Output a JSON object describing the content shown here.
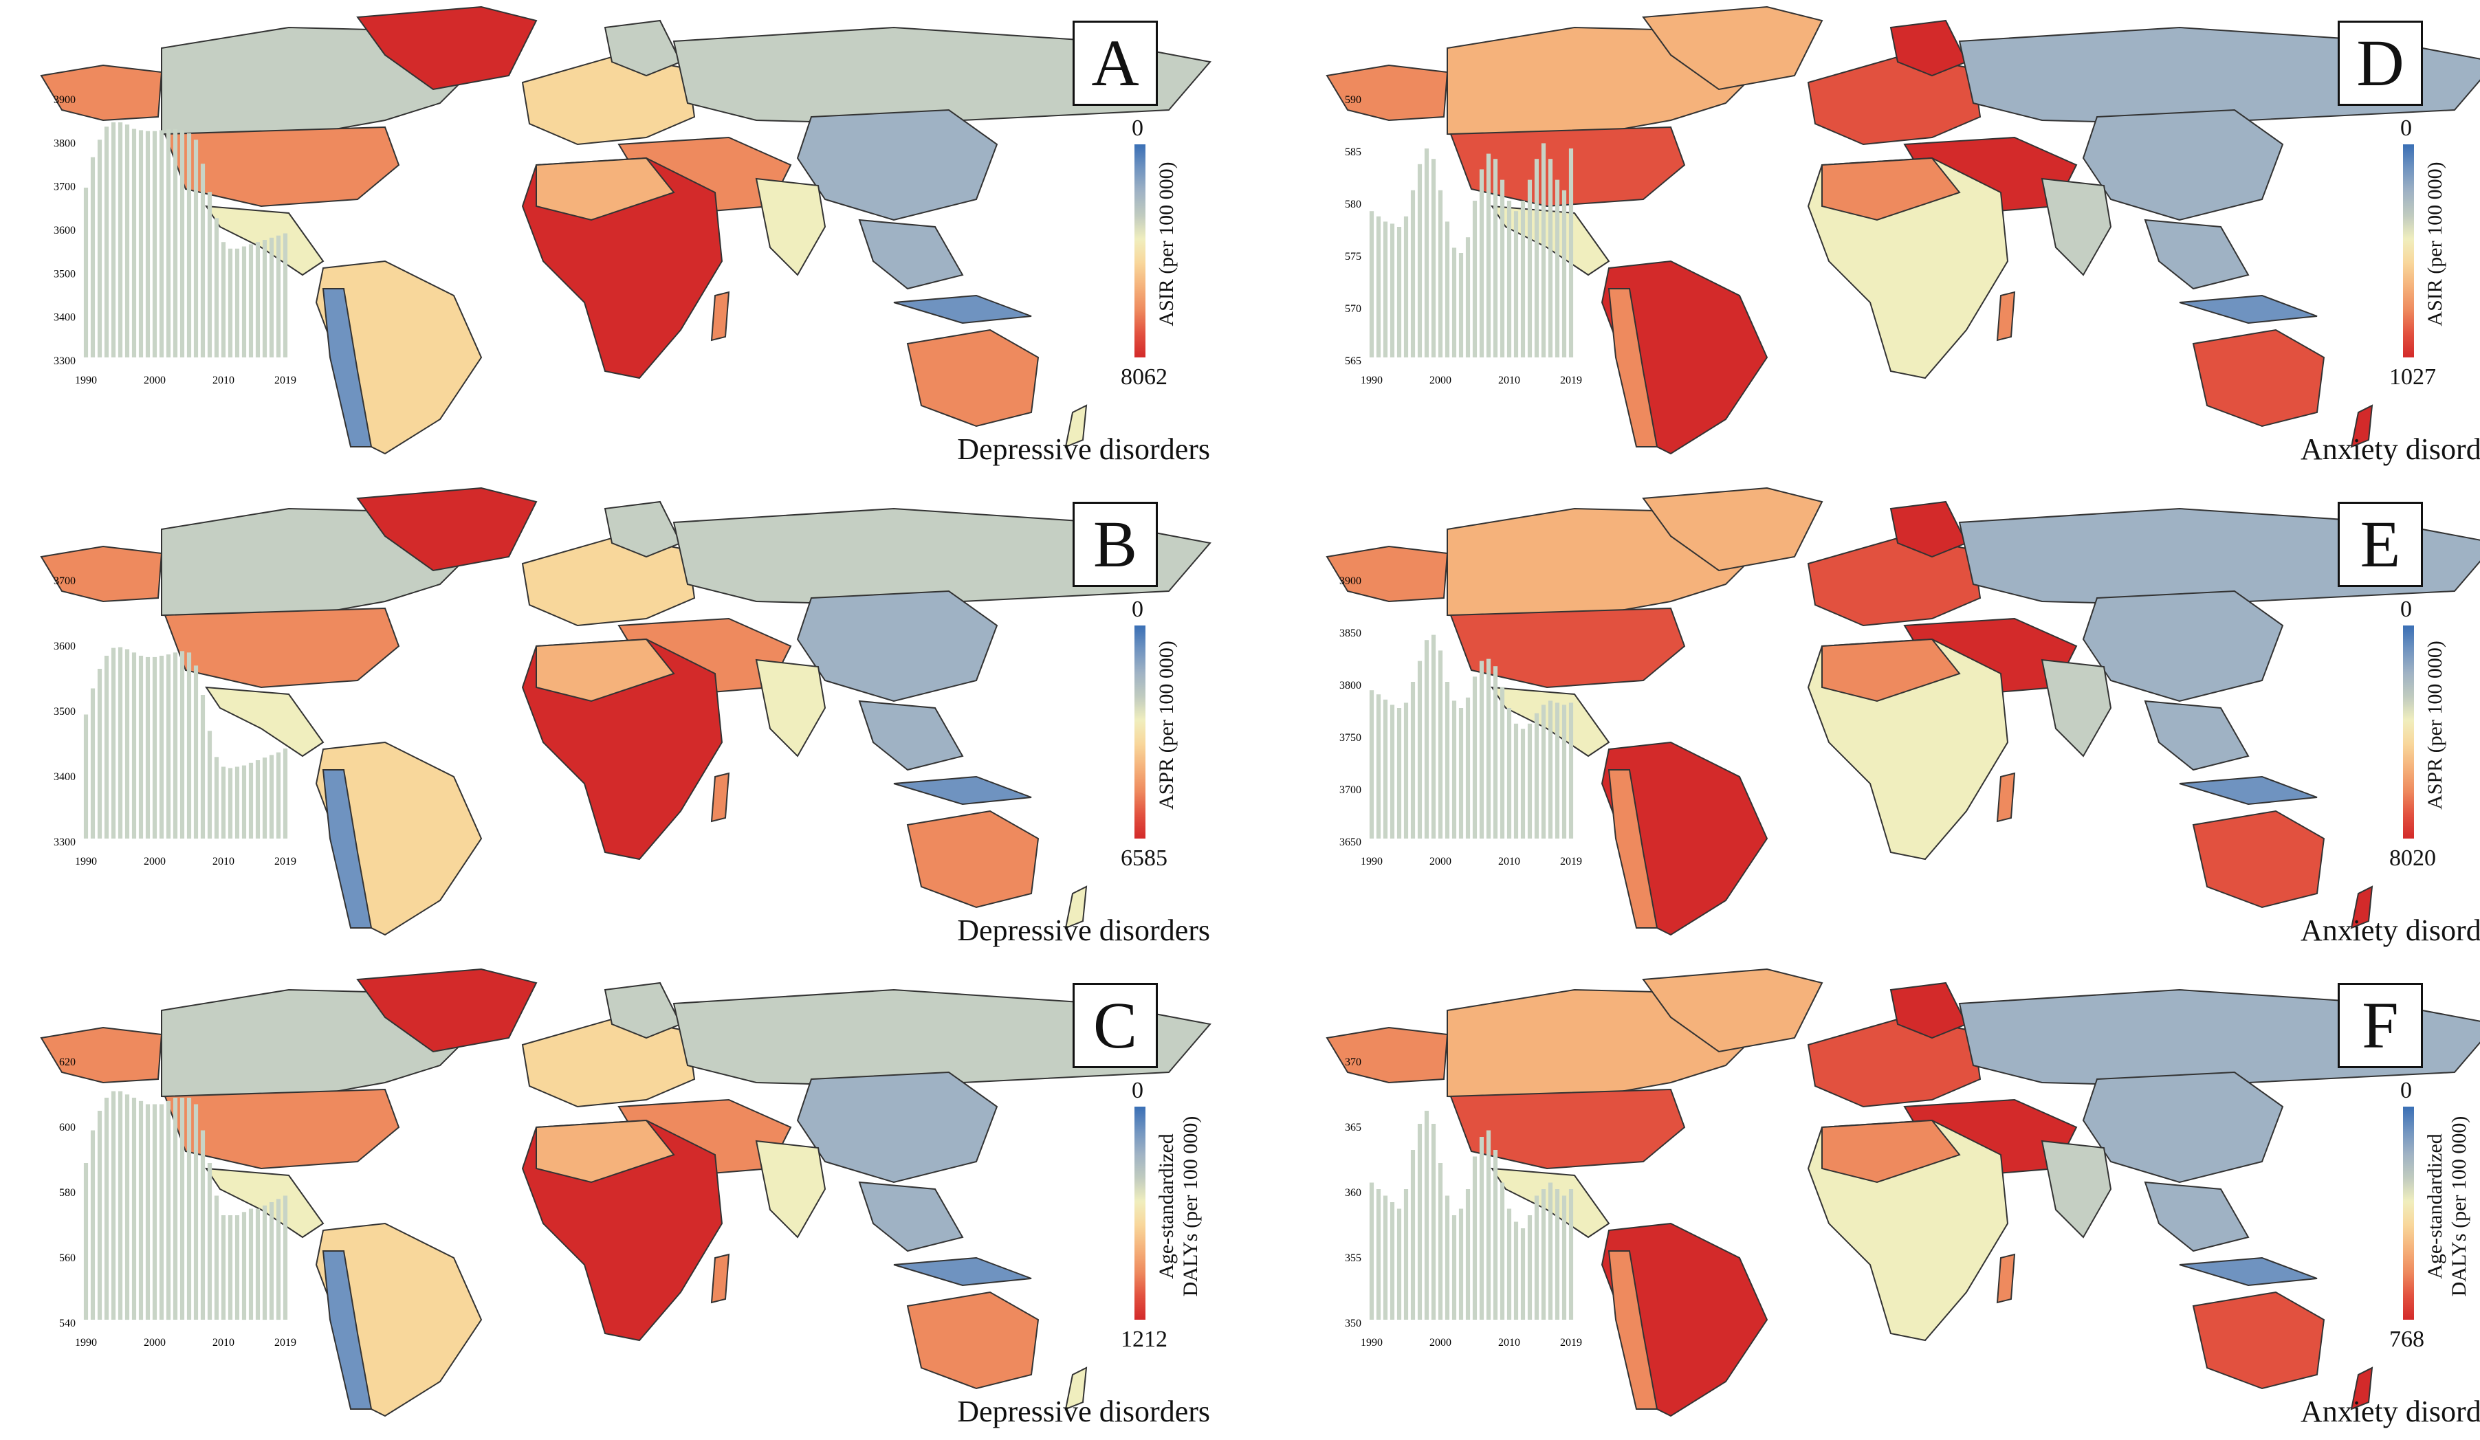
{
  "colors": {
    "scale": [
      "#3a6fb5",
      "#6f93c0",
      "#9fb2c4",
      "#c0cbbf",
      "#f0eebe",
      "#f8d79b",
      "#f5b27b",
      "#ee8a5e",
      "#e2513f",
      "#d32a2a"
    ],
    "bar": "#c8d4c6",
    "land_low": "#9fb2c4",
    "land_mid": "#c5cfc3"
  },
  "panels": [
    {
      "id": "A",
      "letter": "A",
      "disorder": "Depressive disorders",
      "metric": "ASIR (per 100 000)",
      "scale_min": "0",
      "scale_max": "8062",
      "chart_data": {
        "type": "bar",
        "title": "",
        "xlabel": "",
        "ylabel": "",
        "x": [
          1990,
          1991,
          1992,
          1993,
          1994,
          1995,
          1996,
          1997,
          1998,
          1999,
          2000,
          2001,
          2002,
          2003,
          2004,
          2005,
          2006,
          2007,
          2008,
          2009,
          2010,
          2011,
          2012,
          2013,
          2014,
          2015,
          2016,
          2017,
          2018,
          2019
        ],
        "values": [
          3690,
          3760,
          3800,
          3830,
          3840,
          3840,
          3835,
          3825,
          3822,
          3820,
          3820,
          3822,
          3825,
          3825,
          3822,
          3815,
          3800,
          3745,
          3680,
          3620,
          3565,
          3550,
          3550,
          3555,
          3560,
          3565,
          3570,
          3575,
          3580,
          3585
        ],
        "yticks": [
          3300,
          3400,
          3500,
          3600,
          3700,
          3800,
          3900
        ],
        "ylim": [
          3300,
          3900
        ],
        "xticks": [
          "1990",
          "2000",
          "2010",
          "2019"
        ]
      }
    },
    {
      "id": "B",
      "letter": "B",
      "disorder": "Depressive disorders",
      "metric": "ASPR (per 100 000)",
      "scale_min": "0",
      "scale_max": "6585",
      "chart_data": {
        "type": "bar",
        "title": "",
        "xlabel": "",
        "ylabel": "",
        "x": [
          1990,
          1991,
          1992,
          1993,
          1994,
          1995,
          1996,
          1997,
          1998,
          1999,
          2000,
          2001,
          2002,
          2003,
          2004,
          2005,
          2006,
          2007,
          2008,
          2009,
          2010,
          2011,
          2012,
          2013,
          2014,
          2015,
          2016,
          2017,
          2018,
          2019
        ],
        "values": [
          3490,
          3530,
          3560,
          3580,
          3592,
          3593,
          3590,
          3585,
          3580,
          3578,
          3578,
          3580,
          3582,
          3585,
          3587,
          3585,
          3565,
          3520,
          3465,
          3425,
          3410,
          3408,
          3410,
          3412,
          3416,
          3420,
          3424,
          3428,
          3432,
          3438
        ],
        "yticks": [
          3300,
          3400,
          3500,
          3600,
          3700
        ],
        "ylim": [
          3300,
          3700
        ],
        "xticks": [
          "1990",
          "2000",
          "2010",
          "2019"
        ]
      }
    },
    {
      "id": "C",
      "letter": "C",
      "disorder": "Depressive disorders",
      "metric": "Age-standardized DALYs (per 100 000)",
      "scale_min": "0",
      "scale_max": "1212",
      "chart_data": {
        "type": "bar",
        "title": "",
        "xlabel": "",
        "ylabel": "",
        "x": [
          1990,
          1991,
          1992,
          1993,
          1994,
          1995,
          1996,
          1997,
          1998,
          1999,
          2000,
          2001,
          2002,
          2003,
          2004,
          2005,
          2006,
          2007,
          2008,
          2009,
          2010,
          2011,
          2012,
          2013,
          2014,
          2015,
          2016,
          2017,
          2018,
          2019
        ],
        "values": [
          588,
          598,
          604,
          608,
          610,
          610,
          609,
          608,
          607,
          606,
          606,
          606,
          607,
          608,
          608,
          608,
          606,
          598,
          588,
          578,
          572,
          572,
          572,
          573,
          574,
          574,
          575,
          576,
          577,
          578
        ],
        "yticks": [
          540,
          560,
          580,
          600,
          620
        ],
        "ylim": [
          540,
          620
        ],
        "xticks": [
          "1990",
          "2000",
          "2010",
          "2019"
        ]
      }
    },
    {
      "id": "D",
      "letter": "D",
      "disorder": "Anxiety disorders",
      "metric": "ASIR (per 100 000)",
      "scale_min": "0",
      "scale_max": "1027",
      "chart_data": {
        "type": "bar",
        "title": "",
        "xlabel": "",
        "ylabel": "",
        "x": [
          1990,
          1991,
          1992,
          1993,
          1994,
          1995,
          1996,
          1997,
          1998,
          1999,
          2000,
          2001,
          2002,
          2003,
          2004,
          2005,
          2006,
          2007,
          2008,
          2009,
          2010,
          2011,
          2012,
          2013,
          2014,
          2015,
          2016,
          2017,
          2018,
          2019
        ],
        "values": [
          579,
          578.5,
          578,
          577.8,
          577.5,
          578.5,
          581,
          583.5,
          585,
          584,
          581,
          578,
          575.5,
          575,
          576.5,
          580,
          583,
          584.5,
          584,
          582,
          580,
          579,
          580,
          582,
          584,
          585.5,
          584,
          582,
          581,
          585
        ],
        "yticks": [
          565,
          570,
          575,
          580,
          585,
          590
        ],
        "ylim": [
          565,
          590
        ],
        "xticks": [
          "1990",
          "2000",
          "2010",
          "2019"
        ]
      }
    },
    {
      "id": "E",
      "letter": "E",
      "disorder": "Anxiety disorders",
      "metric": "ASPR (per 100 000)",
      "scale_min": "0",
      "scale_max": "8020",
      "chart_data": {
        "type": "bar",
        "title": "",
        "xlabel": "",
        "ylabel": "",
        "x": [
          1990,
          1991,
          1992,
          1993,
          1994,
          1995,
          1996,
          1997,
          1998,
          1999,
          2000,
          2001,
          2002,
          2003,
          2004,
          2005,
          2006,
          2007,
          2008,
          2009,
          2010,
          2011,
          2012,
          2013,
          2014,
          2015,
          2016,
          2017,
          2018,
          2019
        ],
        "values": [
          3792,
          3788,
          3783,
          3778,
          3775,
          3780,
          3800,
          3820,
          3840,
          3845,
          3830,
          3800,
          3782,
          3775,
          3785,
          3805,
          3820,
          3822,
          3815,
          3795,
          3775,
          3760,
          3755,
          3760,
          3770,
          3778,
          3782,
          3780,
          3778,
          3780
        ],
        "yticks": [
          3650,
          3700,
          3750,
          3800,
          3850,
          3900
        ],
        "ylim": [
          3650,
          3900
        ],
        "xticks": [
          "1990",
          "2000",
          "2010",
          "2019"
        ]
      }
    },
    {
      "id": "F",
      "letter": "F",
      "disorder": "Anxiety disorders",
      "metric": "Age-standardized DALYs (per 100 000)",
      "scale_min": "0",
      "scale_max": "768",
      "chart_data": {
        "type": "bar",
        "title": "",
        "xlabel": "",
        "ylabel": "",
        "x": [
          1990,
          1991,
          1992,
          1993,
          1994,
          1995,
          1996,
          1997,
          1998,
          1999,
          2000,
          2001,
          2002,
          2003,
          2004,
          2005,
          2006,
          2007,
          2008,
          2009,
          2010,
          2011,
          2012,
          2013,
          2014,
          2015,
          2016,
          2017,
          2018,
          2019
        ],
        "values": [
          360.5,
          360,
          359.5,
          359,
          358.5,
          360,
          363,
          365,
          366,
          365,
          362,
          359.5,
          358,
          358.5,
          360,
          362.5,
          364,
          364.5,
          363,
          360.5,
          358.5,
          357.5,
          357,
          358,
          359.5,
          360,
          360.5,
          360,
          359.5,
          360
        ],
        "yticks": [
          350,
          355,
          360,
          365,
          370
        ],
        "ylim": [
          350,
          370
        ],
        "xticks": [
          "1990",
          "2000",
          "2010",
          "2019"
        ]
      }
    }
  ]
}
